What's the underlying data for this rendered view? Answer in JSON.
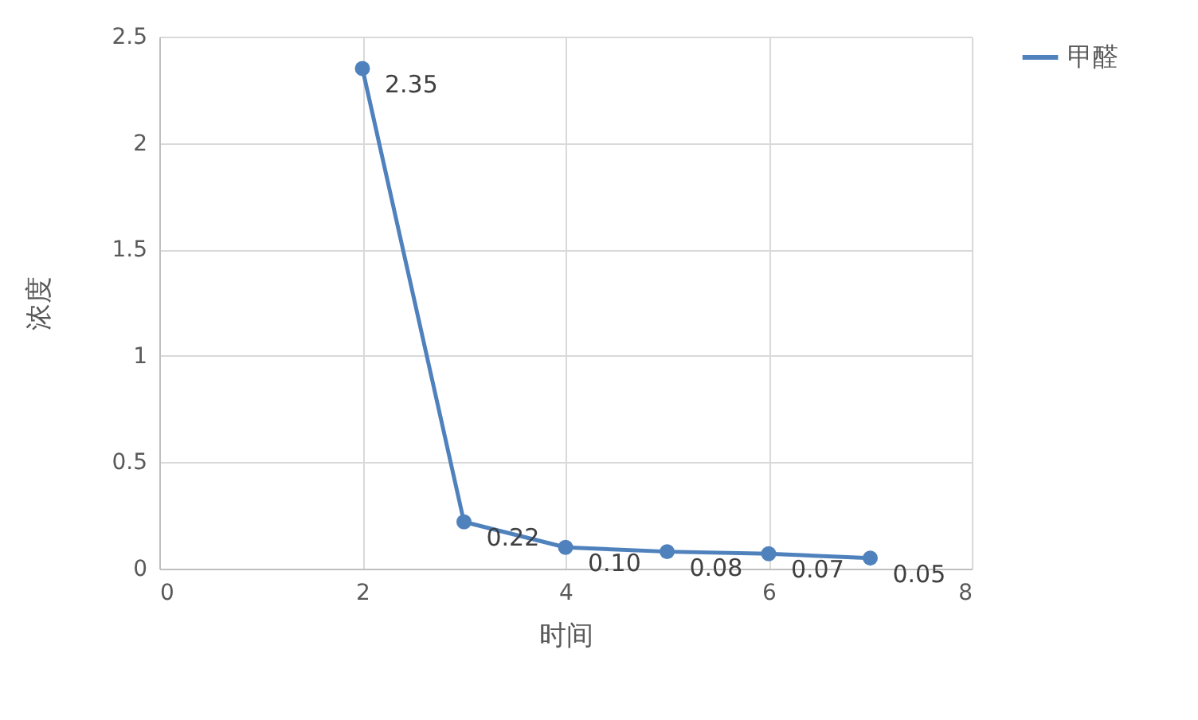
{
  "chart_data": {
    "type": "line",
    "xlabel": "时间",
    "ylabel": "浓度",
    "x": [
      2,
      3,
      4,
      5,
      6,
      7
    ],
    "series": [
      {
        "name": "甲醛",
        "color": "#4f81bd",
        "values": [
          2.35,
          0.22,
          0.1,
          0.08,
          0.07,
          0.05
        ],
        "value_labels": [
          "2.35",
          "0.22",
          "0.10",
          "0.08",
          "0.07",
          "0.05"
        ]
      }
    ],
    "xlim": [
      0,
      8
    ],
    "xticks": [
      0,
      2,
      4,
      6,
      8
    ],
    "ylim": [
      0,
      2.5
    ],
    "yticks": [
      0,
      0.5,
      1,
      1.5,
      2,
      2.5
    ],
    "grid": true,
    "legend": "right",
    "marker": "circle",
    "line_style": "solid"
  }
}
